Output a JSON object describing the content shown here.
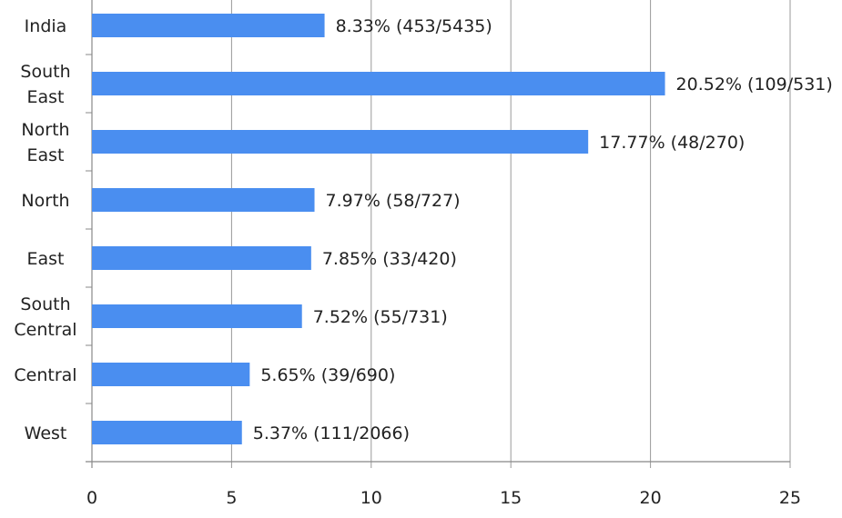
{
  "chart_data": {
    "type": "bar",
    "orientation": "horizontal",
    "categories": [
      "India",
      "South East",
      "North East",
      "North",
      "East",
      "South Central",
      "Central",
      "West"
    ],
    "category_lines": [
      [
        "India"
      ],
      [
        "South",
        "East"
      ],
      [
        "North",
        "East"
      ],
      [
        "North"
      ],
      [
        "East"
      ],
      [
        "South",
        "Central"
      ],
      [
        "Central"
      ],
      [
        "West"
      ]
    ],
    "values": [
      8.33,
      20.52,
      17.77,
      7.97,
      7.85,
      7.52,
      5.65,
      5.37
    ],
    "data_labels": [
      "8.33% (453/5435)",
      "20.52% (109/531)",
      "17.77% (48/270)",
      "7.97% (58/727)",
      "7.85% (33/420)",
      "7.52% (55/731)",
      "5.65% (39/690)",
      "5.37% (111/2066)"
    ],
    "xlim": [
      0,
      25
    ],
    "xticks": [
      0,
      5,
      10,
      15,
      20,
      25
    ],
    "xlabel": "",
    "ylabel": "",
    "title": "",
    "grid": "vertical",
    "colors": {
      "bar": "#4a8ef0",
      "grid": "#999999",
      "axis": "#888888"
    }
  }
}
